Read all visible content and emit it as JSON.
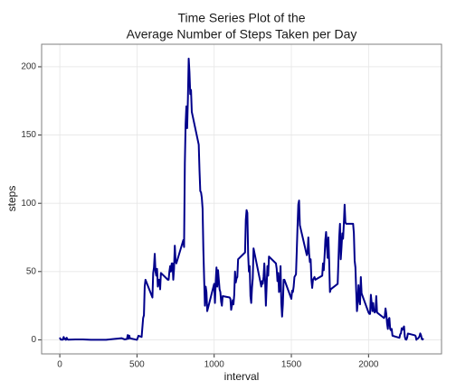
{
  "chart_data": {
    "type": "line",
    "title": [
      "Time Series Plot of the",
      "Average Number of Steps Taken per Day"
    ],
    "x_label": "interval",
    "y_label": "steps",
    "xlim": [
      -117.75,
      2472.75
    ],
    "xticks": [
      0,
      500,
      1000,
      1500,
      2000
    ],
    "ylim": [
      -10.3,
      216.5
    ],
    "yticks": [
      0,
      50,
      100,
      150,
      200
    ],
    "grid": true,
    "x": [
      0,
      5,
      10,
      15,
      20,
      25,
      30,
      35,
      40,
      45,
      50,
      55,
      100,
      150,
      200,
      300,
      400,
      420,
      435,
      440,
      445,
      450,
      455,
      500,
      510,
      530,
      540,
      545,
      550,
      555,
      600,
      605,
      610,
      615,
      620,
      625,
      630,
      635,
      640,
      645,
      650,
      655,
      700,
      705,
      710,
      715,
      720,
      725,
      730,
      735,
      740,
      745,
      750,
      755,
      800,
      805,
      810,
      815,
      820,
      825,
      830,
      835,
      840,
      845,
      850,
      855,
      900,
      905,
      910,
      915,
      920,
      925,
      930,
      935,
      940,
      945,
      950,
      955,
      1000,
      1005,
      1010,
      1015,
      1020,
      1025,
      1030,
      1035,
      1040,
      1045,
      1050,
      1055,
      1100,
      1105,
      1110,
      1115,
      1120,
      1125,
      1130,
      1135,
      1140,
      1145,
      1150,
      1155,
      1200,
      1205,
      1210,
      1215,
      1220,
      1225,
      1230,
      1235,
      1240,
      1245,
      1250,
      1255,
      1300,
      1305,
      1310,
      1315,
      1320,
      1325,
      1330,
      1335,
      1340,
      1345,
      1350,
      1355,
      1400,
      1405,
      1410,
      1415,
      1420,
      1425,
      1430,
      1435,
      1440,
      1445,
      1450,
      1455,
      1500,
      1505,
      1510,
      1515,
      1520,
      1525,
      1530,
      1535,
      1540,
      1545,
      1550,
      1555,
      1600,
      1605,
      1610,
      1615,
      1620,
      1625,
      1630,
      1635,
      1640,
      1645,
      1650,
      1655,
      1700,
      1705,
      1710,
      1715,
      1720,
      1725,
      1730,
      1735,
      1740,
      1745,
      1750,
      1755,
      1800,
      1805,
      1810,
      1815,
      1820,
      1825,
      1830,
      1835,
      1840,
      1845,
      1850,
      1855,
      1900,
      1905,
      1910,
      1915,
      1920,
      1925,
      1930,
      1935,
      1940,
      1945,
      1950,
      1955,
      2000,
      2005,
      2010,
      2015,
      2020,
      2025,
      2030,
      2035,
      2040,
      2045,
      2050,
      2055,
      2100,
      2105,
      2110,
      2115,
      2120,
      2125,
      2130,
      2135,
      2140,
      2145,
      2150,
      2155,
      2200,
      2205,
      2210,
      2215,
      2220,
      2225,
      2230,
      2235,
      2240,
      2245,
      2250,
      2255,
      2300,
      2305,
      2310,
      2315,
      2320,
      2325,
      2330,
      2335,
      2340,
      2345,
      2350,
      2355
    ],
    "series": [
      {
        "name": "steps",
        "color": "#00008b",
        "values": [
          1.7,
          0.3,
          0.1,
          0.2,
          0.1,
          2.1,
          0.5,
          0.9,
          0,
          1.5,
          0.3,
          0.1,
          0.3,
          0.3,
          0,
          0,
          1.2,
          0.3,
          0.6,
          3.5,
          0.8,
          3.1,
          1.1,
          0,
          3.0,
          2.1,
          16,
          18,
          39,
          44,
          31,
          49,
          53,
          63,
          50,
          47,
          52,
          39,
          44,
          44,
          37,
          49,
          44,
          44,
          50,
          54,
          50,
          56,
          56,
          44,
          52,
          69,
          58,
          56,
          73,
          68,
          129,
          158,
          171,
          155,
          177,
          206,
          196,
          180,
          183,
          167,
          143,
          124,
          109,
          108,
          104,
          96,
          66,
          45,
          25,
          39,
          35,
          21,
          41,
          27,
          42,
          53,
          39,
          51,
          44,
          37,
          35,
          28,
          25,
          32,
          31,
          30,
          22,
          25,
          29,
          26,
          33,
          50,
          42,
          45,
          46,
          59,
          64,
          88,
          95,
          93,
          63,
          50,
          54,
          32,
          27,
          38,
          45,
          67,
          42,
          39,
          43,
          41,
          46,
          56,
          43,
          25,
          40,
          54,
          47,
          61,
          56,
          52,
          43,
          49,
          35,
          37,
          54,
          27,
          17,
          26,
          44,
          44,
          30,
          36,
          35,
          39,
          46,
          47,
          48,
          65,
          83,
          99,
          102,
          84,
          62,
          64,
          75,
          63,
          57,
          59,
          44,
          38,
          44,
          45,
          46,
          44,
          47,
          56,
          51,
          61,
          73,
          79,
          69,
          60,
          75,
          57,
          35,
          37,
          41,
          58,
          75,
          85,
          59,
          68,
          78,
          74,
          85,
          99,
          86,
          85,
          85,
          78,
          58,
          53,
          36,
          21,
          27,
          40,
          30,
          26,
          46,
          34,
          20,
          19,
          19,
          33,
          27,
          21,
          27,
          21,
          20,
          21,
          32,
          20,
          16,
          17,
          23,
          19,
          12,
          8,
          15,
          16,
          8,
          7,
          8,
          3,
          1.5,
          4,
          4.8,
          8.5,
          7.4,
          8.7,
          9.8,
          2.2,
          0.3,
          0.1,
          1.6,
          4.6,
          3.3,
          2.8,
          0,
          0.8,
          1,
          1.6,
          2.6,
          4.7,
          3.3,
          0.6,
          0.2,
          1.1
        ]
      }
    ]
  }
}
